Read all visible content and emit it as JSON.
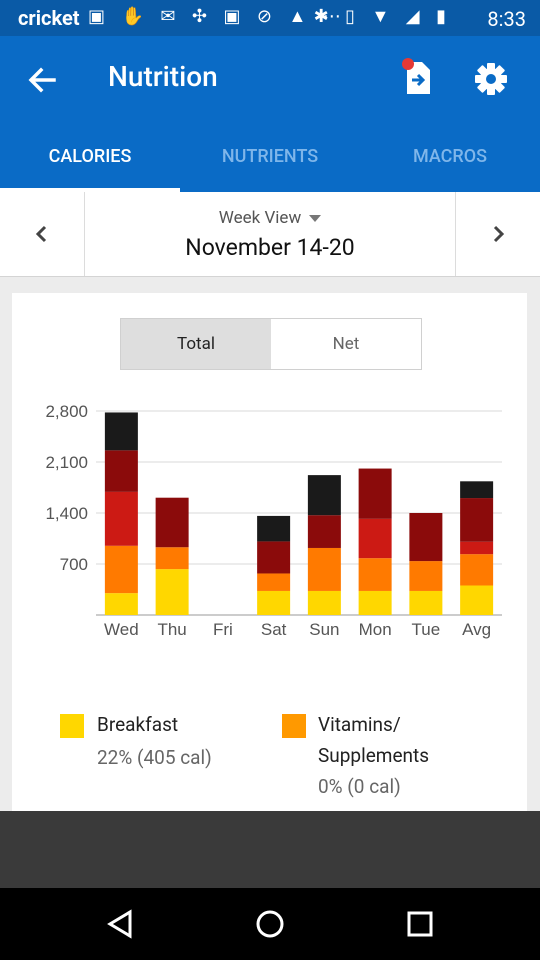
{
  "status_bar": {
    "carrier": "cricket",
    "left_icons": "▣ ✋ ✉ ✣ ▣ ⊘ ▲ ⋯",
    "right_icons": "✱ ▯ ▼ ◢ ▮",
    "time": "8:33"
  },
  "app_bar": {
    "title": "Nutrition",
    "back_icon": "arrow-left",
    "export_icon": "file-export",
    "settings_icon": "gear"
  },
  "tabs": [
    {
      "label": "CALORIES",
      "active": true
    },
    {
      "label": "NUTRIENTS",
      "active": false
    },
    {
      "label": "MACROS",
      "active": false
    }
  ],
  "week_nav": {
    "view_label": "Week View",
    "range": "November 14-20"
  },
  "toggle": {
    "total_label": "Total",
    "net_label": "Net",
    "selected": "Total"
  },
  "chart_data": {
    "type": "bar",
    "stacked": true,
    "categories": [
      "Wed",
      "Thu",
      "Fri",
      "Sat",
      "Sun",
      "Mon",
      "Tue",
      "Avg"
    ],
    "yticks": [
      700,
      1400,
      2100,
      2800
    ],
    "yticklabels": [
      "700",
      "1,400",
      "2,100",
      "2,800"
    ],
    "ylim": [
      0,
      2800
    ],
    "grid": true,
    "series": [
      {
        "name": "Breakfast",
        "color": "#ffd700",
        "values": [
          300,
          630,
          0,
          330,
          330,
          330,
          330,
          405
        ]
      },
      {
        "name": "",
        "color": "#ff7a00",
        "values": [
          650,
          300,
          0,
          240,
          590,
          450,
          410,
          430
        ]
      },
      {
        "name": "",
        "color": "#cc1a14",
        "values": [
          740,
          0,
          0,
          0,
          0,
          540,
          0,
          170
        ]
      },
      {
        "name": "",
        "color": "#8b0b0b",
        "values": [
          570,
          680,
          0,
          440,
          450,
          690,
          660,
          600
        ]
      },
      {
        "name": "",
        "color": "#1a1a1a",
        "values": [
          520,
          0,
          0,
          350,
          550,
          0,
          0,
          230
        ]
      }
    ]
  },
  "legend": [
    {
      "label": "Breakfast",
      "value": "22% (405 cal)",
      "color": "#ffd700"
    },
    {
      "label": "Vitamins/\nSupplements",
      "value": "0% (0 cal)",
      "color": "#ff9900"
    }
  ]
}
